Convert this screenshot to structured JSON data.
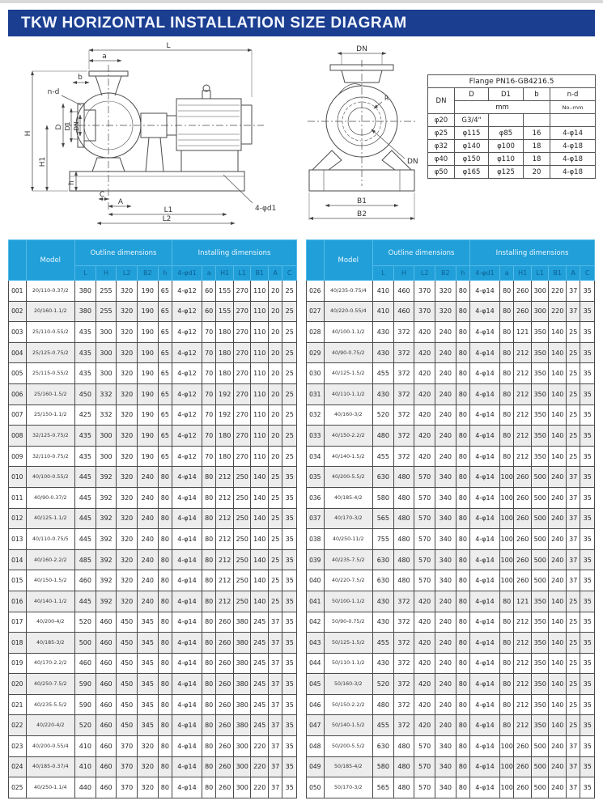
{
  "title": "TKW  HORIZONTAL INSTALLATION SIZE DIAGRAM",
  "colors": {
    "title_bar": "#1b3e91",
    "table_header": "#219fd9",
    "row_alt": "#ededed"
  },
  "flange_table": {
    "title": "Flange PN16-GB4216.5",
    "headers": {
      "dn": "DN",
      "d": "D",
      "d1": "D1",
      "b": "b",
      "nd": "n-d"
    },
    "unit_mm": "mm",
    "unit_nd": "No.-mm",
    "rows": [
      [
        "φ20",
        "G3/4\"",
        "",
        "",
        ""
      ],
      [
        "φ25",
        "φ115",
        "φ85",
        "16",
        "4-φ14"
      ],
      [
        "φ32",
        "φ140",
        "φ100",
        "18",
        "4-φ18"
      ],
      [
        "φ40",
        "φ150",
        "φ110",
        "18",
        "4-φ18"
      ],
      [
        "φ50",
        "φ165",
        "φ125",
        "20",
        "4-φ18"
      ]
    ]
  },
  "diagrams": {
    "side_view": {
      "labels": {
        "L": "L",
        "a": "a",
        "b": "b",
        "nd": "n-d",
        "H": "H",
        "D": "D",
        "D1": "D1",
        "DN": "DN",
        "H1": "H1",
        "h": "h",
        "C": "C",
        "A": "A",
        "L1": "L1",
        "L2": "L2",
        "d1": "4-φd1"
      }
    },
    "front_view": {
      "labels": {
        "DN_top": "DN",
        "R": "R",
        "DN_inner": "DN",
        "B1": "B1",
        "B2": "B2"
      }
    }
  },
  "main_table": {
    "group_headers": {
      "model": "Model",
      "outline": "Outline dimensions",
      "installing": "Installing dimensions"
    },
    "outline_cols": [
      "L",
      "H",
      "L2",
      "B2",
      "h"
    ],
    "installing_cols": [
      "4-φd1",
      "a",
      "H1",
      "L1",
      "B1",
      "A",
      "C"
    ],
    "rows": [
      [
        "001",
        "20/110-0.37/2",
        "380",
        "255",
        "320",
        "190",
        "65",
        "4-φ12",
        "60",
        "155",
        "270",
        "110",
        "20",
        "25"
      ],
      [
        "002",
        "20/160-1.1/2",
        "380",
        "255",
        "320",
        "190",
        "65",
        "4-φ12",
        "60",
        "155",
        "270",
        "110",
        "20",
        "25"
      ],
      [
        "003",
        "25/110-0.55/2",
        "435",
        "300",
        "320",
        "190",
        "65",
        "4-φ12",
        "70",
        "180",
        "270",
        "110",
        "20",
        "25"
      ],
      [
        "004",
        "25/125-0.75/2",
        "435",
        "300",
        "320",
        "190",
        "65",
        "4-φ12",
        "70",
        "180",
        "270",
        "110",
        "20",
        "25"
      ],
      [
        "005",
        "25/115-0.55/2",
        "435",
        "300",
        "320",
        "190",
        "65",
        "4-φ12",
        "70",
        "180",
        "270",
        "110",
        "20",
        "25"
      ],
      [
        "006",
        "25/160-1.5/2",
        "450",
        "332",
        "320",
        "190",
        "65",
        "4-φ12",
        "70",
        "192",
        "270",
        "110",
        "20",
        "25"
      ],
      [
        "007",
        "25/150-1.1/2",
        "425",
        "332",
        "320",
        "190",
        "65",
        "4-φ12",
        "70",
        "192",
        "270",
        "110",
        "20",
        "25"
      ],
      [
        "008",
        "32/125-0.75/2",
        "435",
        "300",
        "320",
        "190",
        "65",
        "4-φ12",
        "70",
        "180",
        "270",
        "110",
        "20",
        "25"
      ],
      [
        "009",
        "32/110-0.75/2",
        "435",
        "300",
        "320",
        "190",
        "65",
        "4-φ12",
        "70",
        "180",
        "270",
        "110",
        "20",
        "25"
      ],
      [
        "010",
        "40/100-0.55/2",
        "445",
        "392",
        "320",
        "240",
        "80",
        "4-φ14",
        "80",
        "212",
        "250",
        "140",
        "25",
        "35"
      ],
      [
        "011",
        "40/90-0.37/2",
        "445",
        "392",
        "320",
        "240",
        "80",
        "4-φ14",
        "80",
        "212",
        "250",
        "140",
        "25",
        "35"
      ],
      [
        "012",
        "40/125-1.1/2",
        "445",
        "392",
        "320",
        "240",
        "80",
        "4-φ14",
        "80",
        "212",
        "250",
        "140",
        "25",
        "35"
      ],
      [
        "013",
        "40/110-0.75/5",
        "445",
        "392",
        "320",
        "240",
        "80",
        "4-φ14",
        "80",
        "212",
        "250",
        "140",
        "25",
        "35"
      ],
      [
        "014",
        "40/160-2.2/2",
        "485",
        "392",
        "320",
        "240",
        "80",
        "4-φ14",
        "80",
        "212",
        "250",
        "140",
        "25",
        "35"
      ],
      [
        "015",
        "40/150-1.5/2",
        "460",
        "392",
        "320",
        "240",
        "80",
        "4-φ14",
        "80",
        "212",
        "250",
        "140",
        "25",
        "35"
      ],
      [
        "016",
        "40/140-1.1/2",
        "445",
        "392",
        "320",
        "240",
        "80",
        "4-φ14",
        "80",
        "212",
        "250",
        "140",
        "25",
        "35"
      ],
      [
        "017",
        "40/200-4/2",
        "520",
        "460",
        "450",
        "345",
        "80",
        "4-φ14",
        "80",
        "260",
        "380",
        "245",
        "37",
        "35"
      ],
      [
        "018",
        "40/185-3/2",
        "500",
        "460",
        "450",
        "345",
        "80",
        "4-φ14",
        "80",
        "260",
        "380",
        "245",
        "37",
        "35"
      ],
      [
        "019",
        "40/170-2.2/2",
        "460",
        "460",
        "450",
        "345",
        "80",
        "4-φ14",
        "80",
        "260",
        "380",
        "245",
        "37",
        "35"
      ],
      [
        "020",
        "40/250-7.5/2",
        "590",
        "460",
        "450",
        "345",
        "80",
        "4-φ14",
        "80",
        "260",
        "380",
        "245",
        "37",
        "35"
      ],
      [
        "021",
        "40/235-5.5/2",
        "590",
        "460",
        "450",
        "345",
        "80",
        "4-φ14",
        "80",
        "260",
        "380",
        "245",
        "37",
        "35"
      ],
      [
        "022",
        "40/220-4/2",
        "520",
        "460",
        "450",
        "345",
        "80",
        "4-φ14",
        "80",
        "260",
        "380",
        "245",
        "37",
        "35"
      ],
      [
        "023",
        "40/200-0.55/4",
        "410",
        "460",
        "370",
        "320",
        "80",
        "4-φ14",
        "80",
        "260",
        "300",
        "220",
        "37",
        "35"
      ],
      [
        "024",
        "40/185-0.37/4",
        "410",
        "460",
        "370",
        "320",
        "80",
        "4-φ14",
        "80",
        "260",
        "300",
        "220",
        "37",
        "35"
      ],
      [
        "025",
        "40/250-1.1/4",
        "440",
        "460",
        "370",
        "320",
        "80",
        "4-φ14",
        "80",
        "260",
        "300",
        "220",
        "37",
        "35"
      ],
      [
        "026",
        "40/235-0.75/4",
        "410",
        "460",
        "370",
        "320",
        "80",
        "4-φ14",
        "80",
        "260",
        "300",
        "220",
        "37",
        "35"
      ],
      [
        "027",
        "40/220-0.55/4",
        "410",
        "460",
        "370",
        "320",
        "80",
        "4-φ14",
        "80",
        "260",
        "300",
        "220",
        "37",
        "35"
      ],
      [
        "028",
        "40/100-1.1/2",
        "430",
        "372",
        "420",
        "240",
        "80",
        "4-φ14",
        "80",
        "121",
        "350",
        "140",
        "25",
        "35"
      ],
      [
        "029",
        "40/90-0.75/2",
        "430",
        "372",
        "420",
        "240",
        "80",
        "4-φ14",
        "80",
        "212",
        "350",
        "140",
        "25",
        "35"
      ],
      [
        "030",
        "40/125-1.5/2",
        "455",
        "372",
        "420",
        "240",
        "80",
        "4-φ14",
        "80",
        "212",
        "350",
        "140",
        "25",
        "35"
      ],
      [
        "031",
        "40/110-1.1/2",
        "430",
        "372",
        "420",
        "240",
        "80",
        "4-φ14",
        "80",
        "212",
        "350",
        "140",
        "25",
        "35"
      ],
      [
        "032",
        "40/160-3/2",
        "520",
        "372",
        "420",
        "240",
        "80",
        "4-φ14",
        "80",
        "212",
        "350",
        "140",
        "25",
        "35"
      ],
      [
        "033",
        "40/150-2.2/2",
        "480",
        "372",
        "420",
        "240",
        "80",
        "4-φ14",
        "80",
        "212",
        "350",
        "140",
        "25",
        "35"
      ],
      [
        "034",
        "40/140-1.5/2",
        "455",
        "372",
        "420",
        "240",
        "80",
        "4-φ14",
        "80",
        "212",
        "350",
        "140",
        "25",
        "35"
      ],
      [
        "035",
        "40/200-5.5/2",
        "630",
        "480",
        "570",
        "340",
        "80",
        "4-φ14",
        "100",
        "260",
        "500",
        "240",
        "37",
        "35"
      ],
      [
        "036",
        "40/185-4/2",
        "580",
        "480",
        "570",
        "340",
        "80",
        "4-φ14",
        "100",
        "260",
        "500",
        "240",
        "37",
        "35"
      ],
      [
        "037",
        "40/170-3/2",
        "565",
        "480",
        "570",
        "340",
        "80",
        "4-φ14",
        "100",
        "260",
        "500",
        "240",
        "37",
        "35"
      ],
      [
        "038",
        "40/250-11/2",
        "755",
        "480",
        "570",
        "340",
        "80",
        "4-φ14",
        "100",
        "260",
        "500",
        "240",
        "37",
        "35"
      ],
      [
        "039",
        "40/235-7.5/2",
        "630",
        "480",
        "570",
        "340",
        "80",
        "4-φ14",
        "100",
        "260",
        "500",
        "240",
        "37",
        "35"
      ],
      [
        "040",
        "40/220-7.5/2",
        "630",
        "480",
        "570",
        "340",
        "80",
        "4-φ14",
        "100",
        "260",
        "500",
        "240",
        "37",
        "35"
      ],
      [
        "041",
        "50/100-1.1/2",
        "430",
        "372",
        "420",
        "240",
        "80",
        "4-φ14",
        "80",
        "121",
        "350",
        "140",
        "25",
        "35"
      ],
      [
        "042",
        "50/90-0.75/2",
        "430",
        "372",
        "420",
        "240",
        "80",
        "4-φ14",
        "80",
        "212",
        "350",
        "140",
        "25",
        "35"
      ],
      [
        "043",
        "50/125-1.5/2",
        "455",
        "372",
        "420",
        "240",
        "80",
        "4-φ14",
        "80",
        "212",
        "350",
        "140",
        "25",
        "35"
      ],
      [
        "044",
        "50/110-1.1/2",
        "430",
        "372",
        "420",
        "240",
        "80",
        "4-φ14",
        "80",
        "212",
        "350",
        "140",
        "25",
        "35"
      ],
      [
        "045",
        "50/160-3/2",
        "520",
        "372",
        "420",
        "240",
        "80",
        "4-φ14",
        "80",
        "212",
        "350",
        "140",
        "25",
        "35"
      ],
      [
        "046",
        "50/150-2.2/2",
        "480",
        "372",
        "420",
        "240",
        "80",
        "4-φ14",
        "80",
        "212",
        "350",
        "140",
        "25",
        "35"
      ],
      [
        "047",
        "50/140-1.5/2",
        "455",
        "372",
        "420",
        "240",
        "80",
        "4-φ14",
        "80",
        "212",
        "350",
        "140",
        "25",
        "35"
      ],
      [
        "048",
        "50/200-5.5/2",
        "630",
        "480",
        "570",
        "340",
        "80",
        "4-φ14",
        "100",
        "260",
        "500",
        "240",
        "37",
        "35"
      ],
      [
        "049",
        "50/185-4/2",
        "580",
        "480",
        "570",
        "340",
        "80",
        "4-φ14",
        "100",
        "260",
        "500",
        "240",
        "37",
        "35"
      ],
      [
        "050",
        "50/170-3/2",
        "565",
        "480",
        "570",
        "340",
        "80",
        "4-φ14",
        "100",
        "260",
        "500",
        "240",
        "37",
        "35"
      ]
    ]
  }
}
